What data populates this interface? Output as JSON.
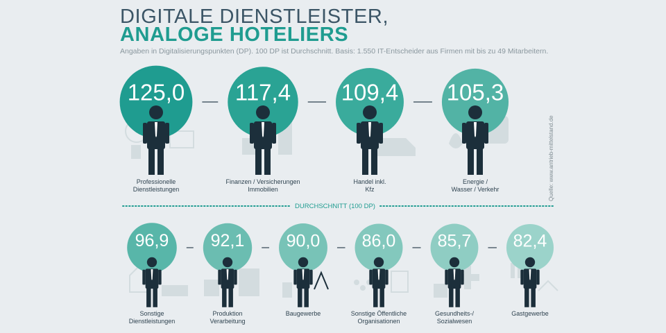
{
  "header": {
    "title_line1": "DIGITALE DIENSTLEISTER,",
    "title_line2": "ANALOGE HOTELIERS",
    "subtitle": "Angaben in Digitalisierungspunkten (DP). 100 DP ist Durchschnitt. Basis: 1.550 IT-Entscheider aus Firmen mit bis zu 49 Mitarbeitern.",
    "source": "Quelle: www.antrieb-mittelstand.de"
  },
  "chart_data": {
    "type": "bar",
    "unit": "DP",
    "average": 100,
    "average_label": "DURCHSCHNITT (100 DP)",
    "categories": [
      "Professionelle Dienstleistungen",
      "Finanzen / Versicherungen Immobilien",
      "Handel inkl. Kfz",
      "Energie / Wasser / Verkehr",
      "Sonstige Dienstleistungen",
      "Produktion Verarbeitung",
      "Baugewerbe",
      "Sonstige Öffentliche Organisationen",
      "Gesundheits- / Sozialwesen",
      "Gastgewerbe"
    ],
    "values": [
      125.0,
      117.4,
      109.4,
      105.3,
      96.9,
      92.1,
      90.0,
      86.0,
      85.7,
      82.4
    ],
    "value_labels": [
      "125,0",
      "117,4",
      "109,4",
      "105,3",
      "96,9",
      "92,1",
      "90,0",
      "86,0",
      "85,7",
      "82,4"
    ],
    "label_lines": [
      [
        "Professionelle",
        "Dienstleistungen"
      ],
      [
        "Finanzen / Versicherungen",
        "Immobilien"
      ],
      [
        "Handel inkl.",
        "Kfz"
      ],
      [
        "Energie /",
        "Wasser / Verkehr"
      ],
      [
        "Sonstige",
        "Dienstleistungen"
      ],
      [
        "Produktion",
        "Verarbeitung"
      ],
      [
        "Baugewerbe"
      ],
      [
        "Sonstige Öffentliche",
        "Organisationen"
      ],
      [
        "Gesundheits-/",
        "Sozialwesen"
      ],
      [
        "Gastgewerbe"
      ]
    ],
    "colors": [
      "#1f9c90",
      "#2aa394",
      "#3aab9c",
      "#52b3a5",
      "#58b6a9",
      "#6bbdb1",
      "#78c3b7",
      "#83c8bd",
      "#8fcdc3",
      "#9bd3ca"
    ],
    "person_color": "#1c2f3b",
    "icon_color": "#d3dcdf"
  }
}
